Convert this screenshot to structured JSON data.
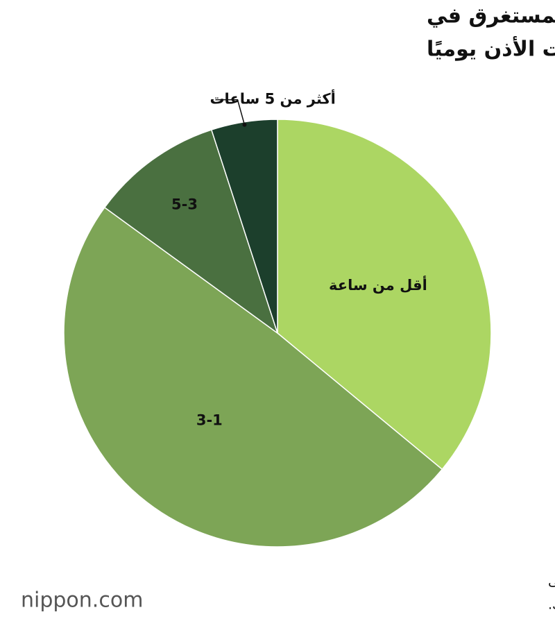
{
  "chart_data": {
    "type": "pie",
    "title": [
      "متوسط الوقت المستغرق في",
      "ارتداء سماعات الأذن يوميًا"
    ],
    "categories": [
      "أقل من ساعة",
      "3-1",
      "5-3",
      "أكثر من 5 ساعات"
    ],
    "values": [
      36,
      49,
      10,
      5
    ],
    "colors": [
      "#acd663",
      "#7da556",
      "#4a7040",
      "#1c3f2c"
    ],
    "source": [
      "تم إعداد البيانات بواسطة Nippon.com بناء على",
      "استطلاع قامت به باناسونيك."
    ],
    "logo": "nippon.com"
  }
}
